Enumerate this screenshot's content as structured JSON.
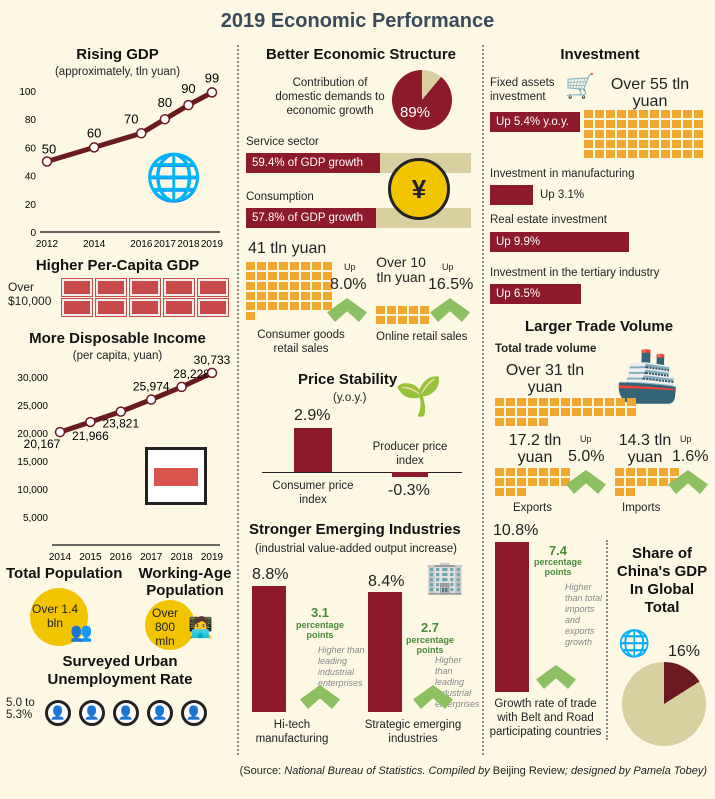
{
  "title": "2019 Economic Performance",
  "colors": {
    "accent": "#8c1a2a",
    "orange": "#f0a830",
    "green": "#4a8a3a",
    "tan": "#d8d0a0",
    "background": "#fcf8e4"
  },
  "gdp": {
    "title": "Rising GDP",
    "subtitle": "(approximately, tln yuan)"
  },
  "per_capita": {
    "title": "Higher Per-Capita GDP",
    "value": "Over $10,000"
  },
  "income": {
    "title": "More Disposable Income",
    "subtitle": "(per capita, yuan)"
  },
  "population": {
    "title": "Total Population",
    "value": "Over 1.4 bln",
    "working_title": "Working-Age Population",
    "working_value": "Over 800 mln"
  },
  "unemployment": {
    "title": "Surveyed Urban Unemployment Rate",
    "value": "5.0 to 5.3%"
  },
  "structure": {
    "title": "Better Economic Structure",
    "domestic_label": "Contribution of domestic demands to economic growth",
    "domestic_value": "89%",
    "domestic_share": 89,
    "service_label": "Service sector",
    "service_value": "59.4% of GDP growth",
    "service_share": 59.4,
    "consumption_label": "Consumption",
    "consumption_value": "57.8% of GDP growth",
    "consumption_share": 57.8,
    "retail_amount": "41 tln yuan",
    "retail_up": "Up",
    "retail_growth": "8.0%",
    "retail_label": "Consumer goods retail sales",
    "online_amount": "Over 10 tln yuan",
    "online_up": "Up",
    "online_growth": "16.5%",
    "online_label": "Online retail sales"
  },
  "price": {
    "title": "Price Stability",
    "subtitle": "(y.o.y.)",
    "cpi_value": "2.9%",
    "cpi_label": "Consumer price index",
    "ppi_value": "-0.3%",
    "ppi_label": "Producer price index"
  },
  "emerging": {
    "title": "Stronger Emerging Industries",
    "subtitle": "(industrial value-added output increase)",
    "items": [
      {
        "value": "8.8%",
        "points": "3.1",
        "points_unit": "percentage points",
        "note": "Higher than leading industrial enterprises",
        "label": "Hi-tech manufacturing"
      },
      {
        "value": "8.4%",
        "points": "2.7",
        "points_unit": "percentage points",
        "note": "Higher than leading industrial enterprises",
        "label": "Strategic emerging industries"
      }
    ]
  },
  "investment": {
    "title": "Investment",
    "fixed_label": "Fixed assets investment",
    "fixed_amount": "Over 55 tln yuan",
    "fixed_growth": "Up 5.4% y.o.y.",
    "items": [
      {
        "label": "Investment in manufacturing",
        "growth": "Up 3.1%",
        "value": 3.1
      },
      {
        "label": "Real estate investment",
        "growth": "Up 9.9%",
        "value": 9.9
      },
      {
        "label": "Investment in the tertiary industry",
        "growth": "Up 6.5%",
        "value": 6.5
      }
    ]
  },
  "trade": {
    "title": "Larger Trade Volume",
    "total_label": "Total trade volume",
    "total_amount": "Over 31 tln yuan",
    "exports_amount": "17.2 tln yuan",
    "exports_up": "Up",
    "exports_growth": "5.0%",
    "exports_label": "Exports",
    "imports_amount": "14.3 tln yuan",
    "imports_up": "Up",
    "imports_growth": "1.6%",
    "imports_label": "Imports",
    "br_value": "10.8%",
    "br_points": "7.4",
    "br_points_unit": "percentage points",
    "br_note": "Higher than total imports and exports growth",
    "br_label": "Growth rate of trade with Belt and Road participating countries"
  },
  "share": {
    "title": "Share of China's GDP In Global Total",
    "value": "16%",
    "share": 16
  },
  "source": {
    "prefix": "(Source: ",
    "nbs": "National Bureau of Statistics",
    "mid": ". Compiled by ",
    "br": "Beijing Review",
    "tail": "; designed by Pamela Tobey)"
  },
  "chart_data": [
    {
      "type": "line",
      "title": "Rising GDP",
      "subtitle": "(approximately, tln yuan)",
      "x": [
        2012,
        2014,
        2016,
        2017,
        2018,
        2019
      ],
      "values": [
        50,
        60,
        70,
        80,
        90,
        99
      ],
      "ylim": [
        0,
        100
      ],
      "yticks": [
        0,
        20,
        40,
        60,
        80,
        100
      ],
      "xticks": [
        "2012",
        "2014",
        "2016",
        "2017",
        "2018",
        "2019"
      ],
      "labels": [
        "50",
        "60",
        "70",
        "80",
        "90",
        "99"
      ],
      "grid": false
    },
    {
      "type": "line",
      "title": "More Disposable Income",
      "subtitle": "(per capita, yuan)",
      "x": [
        2014,
        2015,
        2016,
        2017,
        2018,
        2019
      ],
      "values": [
        20167,
        21966,
        23821,
        25974,
        28228,
        30733
      ],
      "ylim": [
        0,
        30000
      ],
      "yticks": [
        5000,
        10000,
        15000,
        20000,
        25000,
        30000
      ],
      "ytick_labels": [
        "5,000",
        "10,000",
        "15,000",
        "20,000",
        "25,000",
        "30,000"
      ],
      "xticks": [
        "2014",
        "2015",
        "2016",
        "2017",
        "2018",
        "2019"
      ],
      "labels": [
        "20,167",
        "21,966",
        "23,821",
        "25,974",
        "28,228",
        "30,733"
      ],
      "grid": false
    }
  ]
}
